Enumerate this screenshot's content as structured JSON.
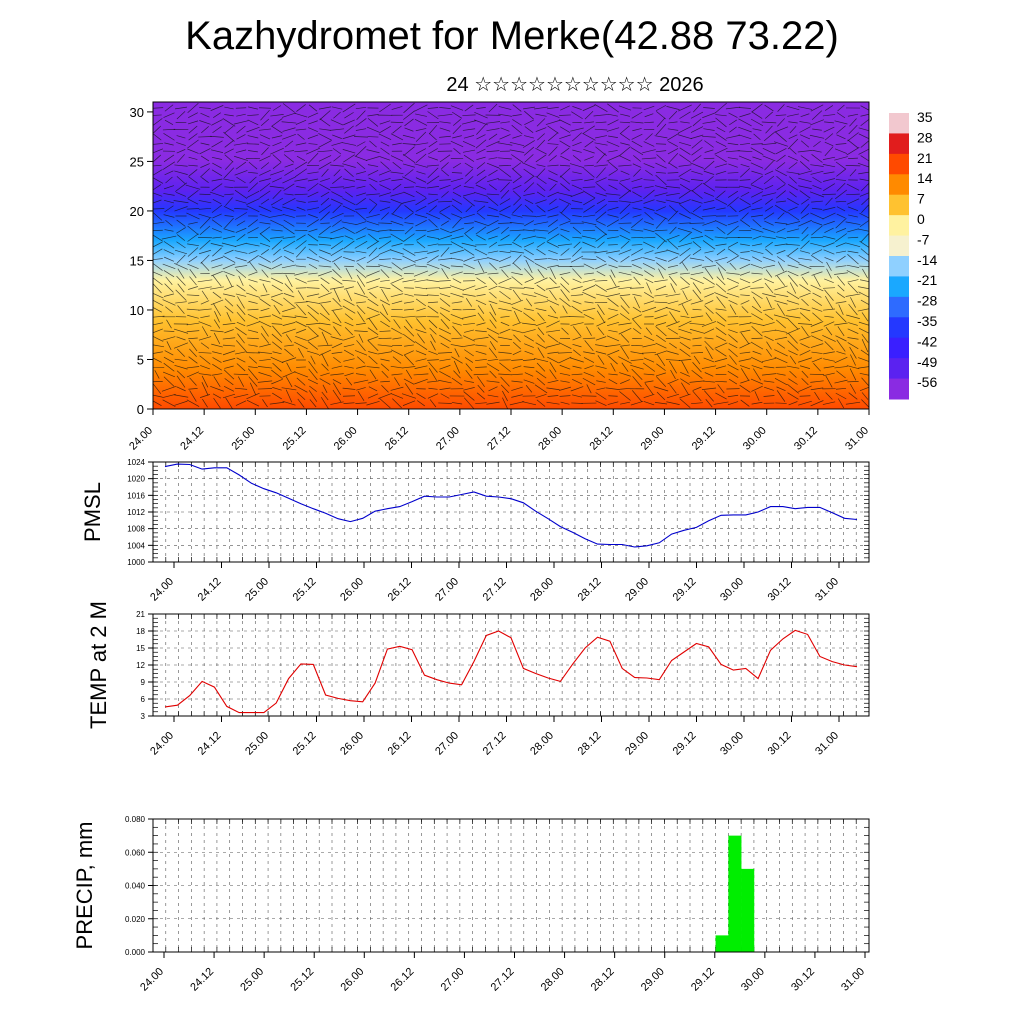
{
  "title": "Kazhydromet for Merke(42.88 73.22)",
  "subtitle": "24 ☆☆☆☆☆☆☆☆☆☆ 2026",
  "time_ticks": [
    "24.00",
    "24.12",
    "25.00",
    "25.12",
    "26.00",
    "26.12",
    "27.00",
    "27.12",
    "28.00",
    "28.12",
    "29.00",
    "29.12",
    "30.00",
    "30.12",
    "31.00"
  ],
  "chart_data": [
    {
      "type": "heatmap",
      "title": "",
      "ylim": [
        0,
        31
      ],
      "yticks": [
        0,
        5,
        10,
        15,
        20,
        25,
        30
      ],
      "x_ticks": [
        "24.00",
        "24.12",
        "25.00",
        "25.12",
        "26.00",
        "26.12",
        "27.00",
        "27.12",
        "28.00",
        "28.12",
        "29.00",
        "29.12",
        "30.00",
        "30.12",
        "31.00"
      ],
      "colorbar_labels": [
        "35",
        "28",
        "21",
        "14",
        "7",
        "0",
        "-7",
        "-14",
        "-21",
        "-28",
        "-35",
        "-42",
        "-49",
        "-56"
      ],
      "colorbar_colors": [
        "#f2c8cf",
        "#e11d1d",
        "#ff4a00",
        "#ff8a00",
        "#ffc230",
        "#fff2a0",
        "#f6f1cf",
        "#8fd0ff",
        "#1aa8ff",
        "#2e6bff",
        "#2438ff",
        "#3a1fff",
        "#5b22f0",
        "#8a2be2"
      ],
      "surface_profile": [
        {
          "level": 0,
          "value": 26
        },
        {
          "level": 4,
          "value": 20
        },
        {
          "level": 9,
          "value": 8
        },
        {
          "level": 13,
          "value": 0
        },
        {
          "level": 15,
          "value": -10
        },
        {
          "level": 17,
          "value": -20
        },
        {
          "level": 20,
          "value": -35
        },
        {
          "level": 22,
          "value": -48
        },
        {
          "level": 25,
          "value": -55
        },
        {
          "level": 31,
          "value": -56
        }
      ]
    },
    {
      "type": "line",
      "ylabel": "PMSL",
      "ylim": [
        1000,
        1024
      ],
      "yticks": [
        1000,
        1004,
        1008,
        1012,
        1016,
        1020,
        1024
      ],
      "x_ticks": [
        "24.00",
        "24.12",
        "25.00",
        "25.12",
        "26.00",
        "26.12",
        "27.00",
        "27.12",
        "28.00",
        "28.12",
        "29.00",
        "29.12",
        "30.00",
        "30.12",
        "31.00"
      ],
      "color": "#0000cc",
      "values": [
        1022.9,
        1023.5,
        1023.4,
        1022.3,
        1022.6,
        1022.6,
        1020.9,
        1018.9,
        1017.6,
        1016.6,
        1015.3,
        1014.0,
        1012.8,
        1011.7,
        1010.4,
        1009.7,
        1010.5,
        1012.2,
        1012.8,
        1013.3,
        1014.5,
        1015.8,
        1015.6,
        1015.6,
        1016.2,
        1016.8,
        1015.8,
        1015.6,
        1015.2,
        1014.2,
        1012.2,
        1010.4,
        1008.5,
        1007.1,
        1005.6,
        1004.3,
        1004.2,
        1004.2,
        1003.6,
        1003.9,
        1004.6,
        1006.7,
        1007.6,
        1008.3,
        1009.9,
        1011.2,
        1011.3,
        1011.3,
        1012.0,
        1013.3,
        1013.3,
        1012.8,
        1013.1,
        1013.1,
        1011.8,
        1010.5,
        1010.2
      ]
    },
    {
      "type": "line",
      "ylabel": "TEMP at 2 M",
      "ylim": [
        3,
        21
      ],
      "yticks": [
        3,
        6,
        9,
        12,
        15,
        18,
        21
      ],
      "x_ticks": [
        "24.00",
        "24.12",
        "25.00",
        "25.12",
        "26.00",
        "26.12",
        "27.00",
        "27.12",
        "28.00",
        "28.12",
        "29.00",
        "29.12",
        "30.00",
        "30.12",
        "31.00"
      ],
      "color": "#e00000",
      "values": [
        4.6,
        4.9,
        6.6,
        9.1,
        8.1,
        4.7,
        3.6,
        3.6,
        3.6,
        5.3,
        9.6,
        12.2,
        12.1,
        6.7,
        6.1,
        5.7,
        5.5,
        8.8,
        14.8,
        15.3,
        14.7,
        10.2,
        9.4,
        8.8,
        8.5,
        12.6,
        17.2,
        18.0,
        16.8,
        11.4,
        10.5,
        9.7,
        9.1,
        12.2,
        15.0,
        16.9,
        16.2,
        11.4,
        9.8,
        9.7,
        9.4,
        12.8,
        14.3,
        15.8,
        15.2,
        12.1,
        11.1,
        11.4,
        9.6,
        14.6,
        16.6,
        18.1,
        17.4,
        13.5,
        12.6,
        12.0,
        11.7
      ]
    },
    {
      "type": "bar",
      "ylabel": "PRECIP, mm",
      "ylim": [
        0,
        0.08
      ],
      "yticks": [
        "0.000",
        "0.020",
        "0.040",
        "0.060",
        "0.080"
      ],
      "x_ticks": [
        "24.00",
        "24.12",
        "25.00",
        "25.12",
        "26.00",
        "26.12",
        "27.00",
        "27.12",
        "28.00",
        "28.12",
        "29.00",
        "29.12",
        "30.00",
        "30.12",
        "31.00"
      ],
      "color": "#00ee00",
      "values": [
        0,
        0,
        0,
        0,
        0,
        0,
        0,
        0,
        0,
        0,
        0,
        0,
        0,
        0,
        0,
        0,
        0,
        0,
        0,
        0,
        0,
        0,
        0,
        0,
        0,
        0,
        0,
        0,
        0,
        0,
        0,
        0,
        0,
        0,
        0,
        0,
        0,
        0,
        0,
        0,
        0,
        0,
        0,
        0,
        0.01,
        0.07,
        0.05,
        0,
        0,
        0,
        0,
        0,
        0,
        0,
        0,
        0
      ]
    }
  ]
}
